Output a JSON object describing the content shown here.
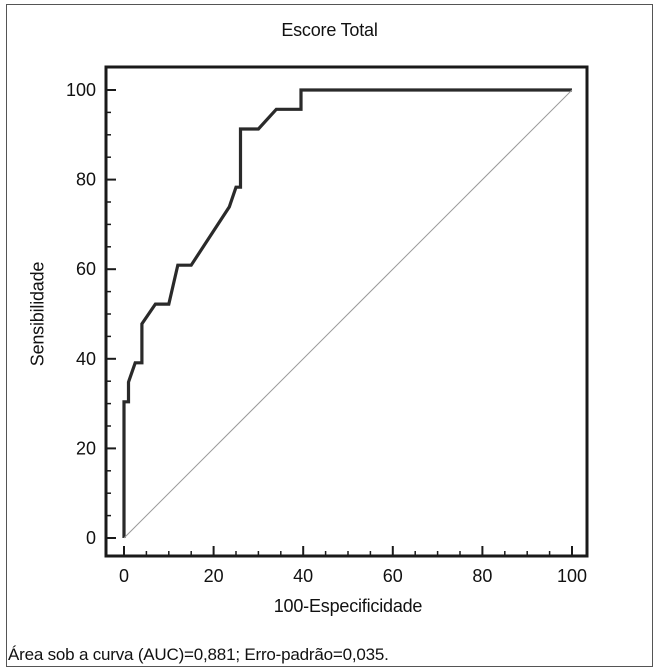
{
  "chart_data": {
    "type": "line",
    "title": "Escore Total",
    "xlabel": "100-Especificidade",
    "ylabel": "Sensibilidade",
    "xlim": [
      0,
      100
    ],
    "ylim": [
      0,
      100
    ],
    "x_ticks": [
      0,
      20,
      40,
      60,
      80,
      100
    ],
    "y_ticks": [
      0,
      20,
      40,
      60,
      80,
      100
    ],
    "grid": false,
    "series": [
      {
        "style": "solid-thick",
        "color": "#2a2a2a",
        "points": [
          [
            0,
            0
          ],
          [
            0,
            30.4
          ],
          [
            1,
            30.4
          ],
          [
            1,
            34.8
          ],
          [
            2.5,
            39.1
          ],
          [
            4,
            39.1
          ],
          [
            4,
            47.8
          ],
          [
            7,
            52.2
          ],
          [
            10,
            52.2
          ],
          [
            12,
            60.9
          ],
          [
            15,
            60.9
          ],
          [
            23.5,
            73.9
          ],
          [
            25,
            78.3
          ],
          [
            26,
            78.3
          ],
          [
            26,
            91.3
          ],
          [
            30,
            91.3
          ],
          [
            34,
            95.7
          ],
          [
            39.5,
            95.7
          ],
          [
            39.5,
            100
          ],
          [
            100,
            100
          ]
        ]
      },
      {
        "style": "diagonal-reference",
        "color": "#9a9a9a",
        "points": [
          [
            0,
            0
          ],
          [
            100,
            100
          ]
        ]
      }
    ]
  },
  "footnote": "Área sob a curva (AUC)=0,881; Erro-padrão=0,035."
}
